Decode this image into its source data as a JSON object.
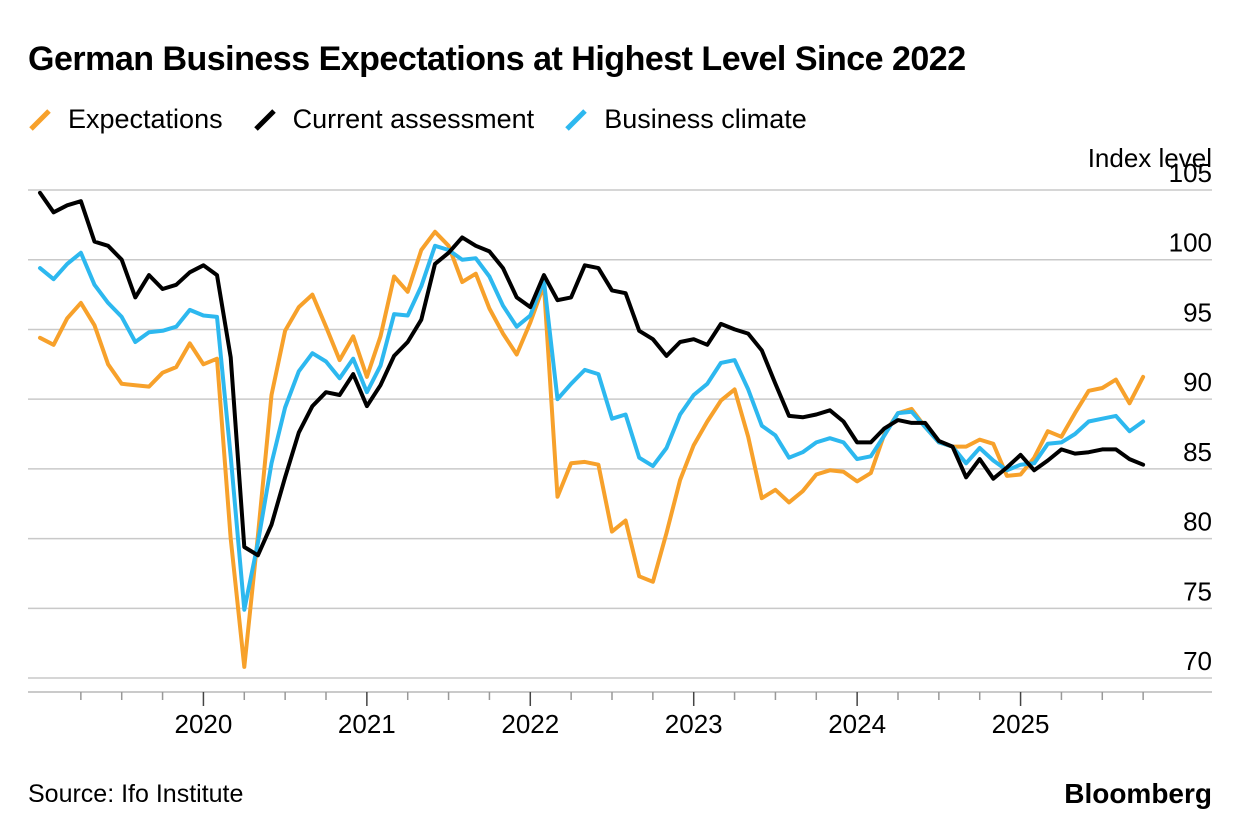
{
  "title": "German Business Expectations at Highest Level Since 2022",
  "source": "Source: Ifo Institute",
  "brand": "Bloomberg",
  "colors": {
    "expectations": "#f7a12b",
    "current": "#000000",
    "climate": "#2db8ef",
    "grid": "#c9c9c9",
    "axis": "#b8b8b8"
  },
  "chart_data": {
    "type": "line",
    "title": "German Business Expectations at Highest Level Since 2022",
    "ylabel": "Index level",
    "ylim": [
      69,
      105
    ],
    "yticks": [
      70,
      75,
      80,
      85,
      90,
      95,
      100,
      105
    ],
    "xlabel": "",
    "xticks": [
      {
        "label": "2020",
        "x": 2020.0
      },
      {
        "label": "2021",
        "x": 2021.0
      },
      {
        "label": "2022",
        "x": 2022.0
      },
      {
        "label": "2023",
        "x": 2023.0
      },
      {
        "label": "2024",
        "x": 2024.0
      },
      {
        "label": "2025",
        "x": 2025.0
      }
    ],
    "x_start": 2019.0,
    "x_end": 2026.0,
    "start_month": 2019.0,
    "step": 0.083333,
    "series": [
      {
        "name": "Expectations",
        "color": "#f7a12b",
        "values": [
          94.4,
          93.9,
          95.8,
          96.9,
          95.3,
          92.5,
          91.1,
          91.0,
          90.9,
          91.9,
          92.3,
          94.0,
          92.5,
          92.9,
          80.0,
          70.8,
          80.2,
          90.3,
          94.9,
          96.6,
          97.5,
          95.2,
          92.8,
          94.5,
          91.6,
          94.5,
          98.8,
          97.7,
          100.7,
          102.0,
          101.0,
          98.4,
          99.0,
          96.5,
          94.7,
          93.2,
          95.5,
          98.2,
          83.0,
          85.4,
          85.5,
          85.3,
          80.5,
          81.3,
          77.3,
          76.9,
          80.4,
          84.2,
          86.7,
          88.4,
          89.9,
          90.7,
          87.3,
          82.9,
          83.5,
          82.6,
          83.4,
          84.6,
          84.9,
          84.8,
          84.1,
          84.7,
          87.5,
          89.0,
          89.3,
          88.0,
          86.9,
          86.6,
          86.6,
          87.1,
          86.8,
          84.5,
          84.6,
          85.8,
          87.7,
          87.3,
          89.0,
          90.6,
          90.8,
          91.4,
          89.7,
          91.6
        ]
      },
      {
        "name": "Current assessment",
        "color": "#000000",
        "values": [
          104.8,
          103.4,
          103.9,
          104.2,
          101.3,
          101.0,
          100.0,
          97.3,
          98.9,
          97.9,
          98.2,
          99.1,
          99.6,
          98.9,
          93.0,
          79.4,
          78.8,
          81.0,
          84.4,
          87.6,
          89.5,
          90.5,
          90.3,
          91.8,
          89.5,
          91.0,
          93.1,
          94.1,
          95.7,
          99.7,
          100.5,
          101.6,
          101.0,
          100.6,
          99.4,
          97.3,
          96.6,
          98.9,
          97.1,
          97.3,
          99.6,
          99.4,
          97.8,
          97.6,
          94.9,
          94.3,
          93.1,
          94.1,
          94.3,
          93.9,
          95.4,
          95.0,
          94.7,
          93.5,
          91.1,
          88.8,
          88.7,
          88.9,
          89.2,
          88.4,
          86.9,
          86.9,
          87.9,
          88.5,
          88.3,
          88.3,
          87.0,
          86.6,
          84.4,
          85.7,
          84.3,
          85.1,
          86.0,
          84.9,
          85.6,
          86.4,
          86.1,
          86.2,
          86.4,
          86.4,
          85.7,
          85.3
        ]
      },
      {
        "name": "Business climate",
        "color": "#2db8ef",
        "values": [
          99.4,
          98.6,
          99.7,
          100.5,
          98.2,
          96.9,
          95.9,
          94.1,
          94.8,
          94.9,
          95.2,
          96.4,
          96.0,
          95.9,
          85.9,
          74.9,
          79.7,
          85.4,
          89.4,
          92.0,
          93.3,
          92.7,
          91.5,
          92.9,
          90.5,
          92.4,
          96.1,
          96.0,
          98.1,
          101.0,
          100.7,
          100.0,
          100.1,
          98.8,
          96.7,
          95.2,
          96.0,
          98.5,
          90.0,
          91.1,
          92.1,
          91.8,
          88.6,
          88.9,
          85.8,
          85.2,
          86.5,
          88.9,
          90.3,
          91.1,
          92.6,
          92.8,
          90.7,
          88.1,
          87.4,
          85.8,
          86.2,
          86.9,
          87.2,
          86.9,
          85.7,
          85.9,
          87.4,
          89.0,
          89.1,
          88.0,
          86.9,
          86.6,
          85.4,
          86.5,
          85.6,
          84.9,
          85.3,
          85.4,
          86.8,
          86.9,
          87.5,
          88.4,
          88.6,
          88.8,
          87.7,
          88.4
        ]
      }
    ]
  },
  "legend": [
    {
      "label": "Expectations",
      "key": "expectations"
    },
    {
      "label": "Current assessment",
      "key": "current"
    },
    {
      "label": "Business climate",
      "key": "climate"
    }
  ]
}
